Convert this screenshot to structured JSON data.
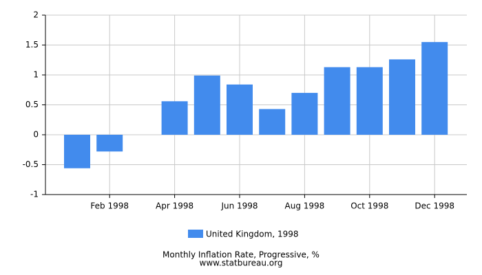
{
  "chart_data": {
    "type": "bar",
    "title": "Monthly Inflation Rate, Progressive, %",
    "subtitle": "www.statbureau.org",
    "categories": [
      null,
      "Feb 1998",
      null,
      "Apr 1998",
      null,
      "Jun 1998",
      null,
      "Aug 1998",
      null,
      "Oct 1998",
      null,
      "Dec 1998"
    ],
    "series": [
      {
        "name": "United Kingdom, 1998",
        "color": "#428bed",
        "values": [
          -0.56,
          -0.28,
          0,
          0.56,
          0.99,
          0.84,
          0.43,
          0.7,
          1.13,
          1.13,
          1.26,
          1.55
        ]
      }
    ],
    "ylim": [
      -1,
      2
    ],
    "yticks": [
      -1,
      -0.5,
      0,
      0.5,
      1,
      1.5,
      2
    ],
    "grid": true,
    "legend": "bottom"
  }
}
